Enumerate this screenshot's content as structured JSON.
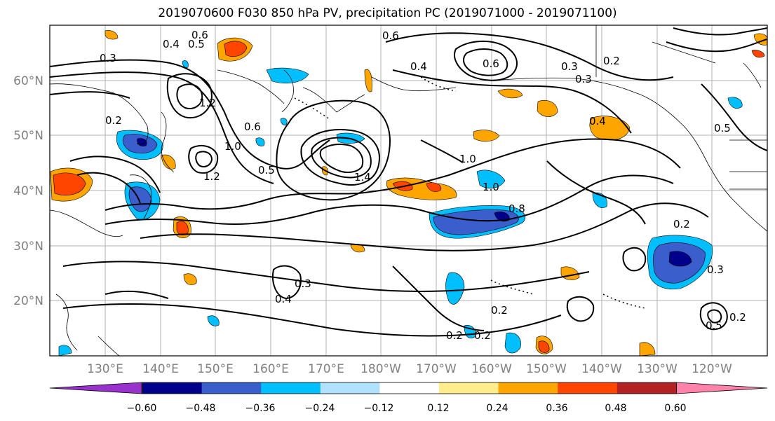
{
  "title": "2019070600 F030 850 hPa PV, precipitation PC (2019071000 - 2019071100)",
  "map": {
    "lat_labels": [
      "60°N",
      "50°N",
      "40°N",
      "30°N",
      "20°N"
    ],
    "lon_labels": [
      "130°E",
      "140°E",
      "150°E",
      "160°E",
      "170°E",
      "180°W",
      "170°W",
      "160°W",
      "150°W",
      "140°W",
      "130°W",
      "120°W"
    ]
  },
  "contour_labels": [
    "0.6",
    "0.5",
    "0.4",
    "0.3",
    "0.6",
    "0.4",
    "0.3",
    "0.6",
    "0.2",
    "0.3",
    "1.2",
    "0.2",
    "0.6",
    "1.0",
    "1.2",
    "0.5",
    "1.0",
    "1.0",
    "0.8",
    "0.4",
    "0.5",
    "0.2",
    "0.3",
    "0.4",
    "0.3",
    "0.2",
    "0.2",
    "0.5",
    "0.2",
    "0.2",
    "1.4"
  ],
  "colorbar": {
    "ticks": [
      "−0.60",
      "−0.48",
      "−0.36",
      "−0.24",
      "−0.12",
      "0.12",
      "0.24",
      "0.36",
      "0.48",
      "0.60"
    ],
    "colors": [
      "#9932CC",
      "#00008B",
      "#3A5FCD",
      "#00BFFF",
      "#B0E2FF",
      "#FFFFFF",
      "#FFEC8B",
      "#FFA500",
      "#FF4500",
      "#B22222",
      "#FF82AB"
    ]
  }
}
